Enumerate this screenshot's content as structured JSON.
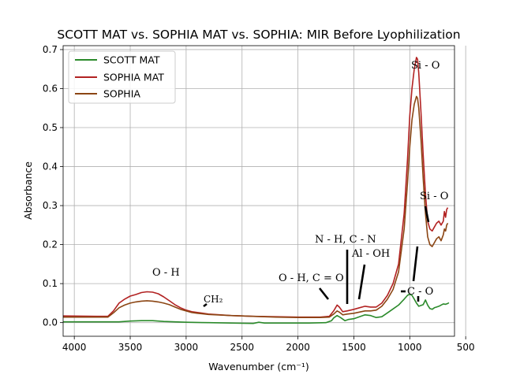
{
  "chart_data": {
    "type": "line",
    "title": "SCOTT MAT vs. SOPHIA MAT vs. SOPHIA: MIR Before Lyophilization",
    "xlabel": "Wavenumber (cm⁻¹)",
    "ylabel": "Absorbance",
    "xlim": [
      4100,
      600
    ],
    "x_reversed": true,
    "ylim": [
      -0.035,
      0.71
    ],
    "xticks": [
      4000,
      3500,
      3000,
      2500,
      2000,
      1500,
      1000,
      500
    ],
    "yticks": [
      0.0,
      0.1,
      0.2,
      0.3,
      0.4,
      0.5,
      0.6,
      0.7
    ],
    "grid": true,
    "legend_position": "top-left",
    "series": [
      {
        "name": "SCOTT MAT",
        "color": "#2b8a2b",
        "points": [
          [
            4100,
            0.002
          ],
          [
            3700,
            0.002
          ],
          [
            3600,
            0.002
          ],
          [
            3500,
            0.004
          ],
          [
            3400,
            0.005
          ],
          [
            3300,
            0.005
          ],
          [
            3200,
            0.003
          ],
          [
            3000,
            0.001
          ],
          [
            2800,
            0.0
          ],
          [
            2600,
            -0.001
          ],
          [
            2400,
            -0.002
          ],
          [
            2350,
            0.001
          ],
          [
            2300,
            -0.001
          ],
          [
            2100,
            -0.001
          ],
          [
            1900,
            -0.001
          ],
          [
            1750,
            0.0
          ],
          [
            1700,
            0.005
          ],
          [
            1680,
            0.012
          ],
          [
            1650,
            0.018
          ],
          [
            1620,
            0.013
          ],
          [
            1580,
            0.005
          ],
          [
            1550,
            0.008
          ],
          [
            1500,
            0.01
          ],
          [
            1450,
            0.015
          ],
          [
            1400,
            0.02
          ],
          [
            1350,
            0.018
          ],
          [
            1300,
            0.013
          ],
          [
            1250,
            0.015
          ],
          [
            1200,
            0.025
          ],
          [
            1150,
            0.035
          ],
          [
            1100,
            0.045
          ],
          [
            1050,
            0.06
          ],
          [
            1020,
            0.07
          ],
          [
            1000,
            0.073
          ],
          [
            980,
            0.07
          ],
          [
            960,
            0.06
          ],
          [
            940,
            0.05
          ],
          [
            920,
            0.042
          ],
          [
            900,
            0.044
          ],
          [
            880,
            0.046
          ],
          [
            860,
            0.058
          ],
          [
            840,
            0.045
          ],
          [
            820,
            0.036
          ],
          [
            800,
            0.034
          ],
          [
            780,
            0.038
          ],
          [
            760,
            0.04
          ],
          [
            740,
            0.042
          ],
          [
            720,
            0.045
          ],
          [
            700,
            0.048
          ],
          [
            680,
            0.047
          ],
          [
            660,
            0.049
          ],
          [
            650,
            0.051
          ]
        ]
      },
      {
        "name": "SOPHIA MAT",
        "color": "#b22222",
        "points": [
          [
            4100,
            0.017
          ],
          [
            3800,
            0.016
          ],
          [
            3700,
            0.016
          ],
          [
            3650,
            0.03
          ],
          [
            3600,
            0.05
          ],
          [
            3550,
            0.06
          ],
          [
            3500,
            0.068
          ],
          [
            3450,
            0.072
          ],
          [
            3400,
            0.077
          ],
          [
            3350,
            0.079
          ],
          [
            3300,
            0.078
          ],
          [
            3250,
            0.074
          ],
          [
            3200,
            0.066
          ],
          [
            3150,
            0.056
          ],
          [
            3100,
            0.046
          ],
          [
            3050,
            0.038
          ],
          [
            3000,
            0.032
          ],
          [
            2950,
            0.028
          ],
          [
            2900,
            0.026
          ],
          [
            2800,
            0.022
          ],
          [
            2600,
            0.018
          ],
          [
            2400,
            0.016
          ],
          [
            2200,
            0.015
          ],
          [
            2000,
            0.014
          ],
          [
            1800,
            0.014
          ],
          [
            1720,
            0.016
          ],
          [
            1680,
            0.03
          ],
          [
            1650,
            0.045
          ],
          [
            1630,
            0.04
          ],
          [
            1600,
            0.028
          ],
          [
            1560,
            0.03
          ],
          [
            1500,
            0.034
          ],
          [
            1450,
            0.038
          ],
          [
            1400,
            0.042
          ],
          [
            1350,
            0.04
          ],
          [
            1300,
            0.04
          ],
          [
            1250,
            0.05
          ],
          [
            1200,
            0.07
          ],
          [
            1150,
            0.1
          ],
          [
            1100,
            0.15
          ],
          [
            1050,
            0.28
          ],
          [
            1020,
            0.42
          ],
          [
            1000,
            0.53
          ],
          [
            980,
            0.6
          ],
          [
            960,
            0.65
          ],
          [
            940,
            0.68
          ],
          [
            930,
            0.675
          ],
          [
            920,
            0.64
          ],
          [
            900,
            0.54
          ],
          [
            880,
            0.43
          ],
          [
            860,
            0.33
          ],
          [
            840,
            0.26
          ],
          [
            820,
            0.24
          ],
          [
            800,
            0.235
          ],
          [
            780,
            0.245
          ],
          [
            760,
            0.255
          ],
          [
            740,
            0.26
          ],
          [
            720,
            0.25
          ],
          [
            700,
            0.26
          ],
          [
            690,
            0.285
          ],
          [
            680,
            0.27
          ],
          [
            670,
            0.29
          ],
          [
            660,
            0.295
          ]
        ]
      },
      {
        "name": "SOPHIA",
        "color": "#8b4513",
        "points": [
          [
            4100,
            0.014
          ],
          [
            3800,
            0.014
          ],
          [
            3700,
            0.014
          ],
          [
            3650,
            0.025
          ],
          [
            3600,
            0.038
          ],
          [
            3550,
            0.045
          ],
          [
            3500,
            0.05
          ],
          [
            3450,
            0.053
          ],
          [
            3400,
            0.055
          ],
          [
            3350,
            0.056
          ],
          [
            3300,
            0.055
          ],
          [
            3250,
            0.053
          ],
          [
            3200,
            0.05
          ],
          [
            3150,
            0.046
          ],
          [
            3100,
            0.04
          ],
          [
            3050,
            0.034
          ],
          [
            3000,
            0.03
          ],
          [
            2950,
            0.026
          ],
          [
            2900,
            0.024
          ],
          [
            2800,
            0.021
          ],
          [
            2600,
            0.018
          ],
          [
            2400,
            0.016
          ],
          [
            2200,
            0.014
          ],
          [
            2000,
            0.013
          ],
          [
            1800,
            0.013
          ],
          [
            1720,
            0.014
          ],
          [
            1680,
            0.022
          ],
          [
            1650,
            0.03
          ],
          [
            1630,
            0.027
          ],
          [
            1600,
            0.02
          ],
          [
            1560,
            0.022
          ],
          [
            1500,
            0.024
          ],
          [
            1450,
            0.027
          ],
          [
            1400,
            0.03
          ],
          [
            1350,
            0.03
          ],
          [
            1300,
            0.032
          ],
          [
            1250,
            0.042
          ],
          [
            1200,
            0.06
          ],
          [
            1150,
            0.085
          ],
          [
            1100,
            0.13
          ],
          [
            1050,
            0.24
          ],
          [
            1020,
            0.36
          ],
          [
            1000,
            0.45
          ],
          [
            980,
            0.52
          ],
          [
            960,
            0.56
          ],
          [
            940,
            0.58
          ],
          [
            930,
            0.575
          ],
          [
            920,
            0.55
          ],
          [
            900,
            0.47
          ],
          [
            880,
            0.37
          ],
          [
            860,
            0.28
          ],
          [
            840,
            0.22
          ],
          [
            820,
            0.2
          ],
          [
            800,
            0.195
          ],
          [
            780,
            0.205
          ],
          [
            760,
            0.215
          ],
          [
            740,
            0.22
          ],
          [
            720,
            0.21
          ],
          [
            700,
            0.225
          ],
          [
            690,
            0.24
          ],
          [
            680,
            0.235
          ],
          [
            670,
            0.25
          ],
          [
            660,
            0.255
          ]
        ]
      }
    ],
    "annotations": [
      {
        "id": "oh",
        "text": "O - H"
      },
      {
        "id": "ch2",
        "text": "CH₂"
      },
      {
        "id": "oh-co",
        "text": "O - H, C = O"
      },
      {
        "id": "nh-cn",
        "text": "N - H, C - N"
      },
      {
        "id": "al-oh",
        "text": "Al - OH"
      },
      {
        "id": "si-o-main",
        "text": "Si - O"
      },
      {
        "id": "si-o-secondary",
        "text": "Si - O"
      },
      {
        "id": "c-o",
        "text": "C - O"
      }
    ]
  }
}
